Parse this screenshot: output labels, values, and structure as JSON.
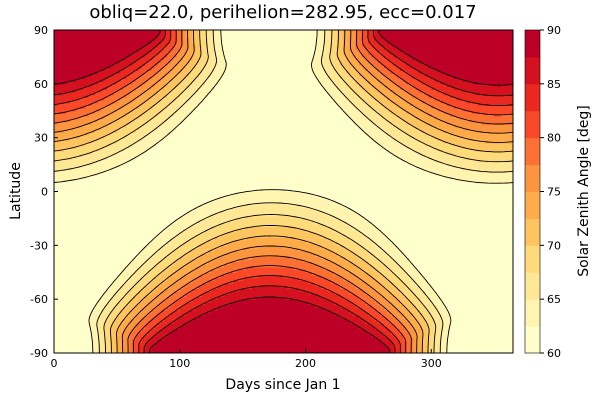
{
  "chart_data": {
    "type": "heatmap",
    "subtype": "filled-contour",
    "title": "obliq=22.0, perihelion=282.95, ecc=0.017",
    "xlabel": "Days since Jan 1",
    "ylabel": "Latitude",
    "colorbar_label": "Solar Zenith Angle [deg]",
    "xlim": [
      0,
      365
    ],
    "ylim": [
      -90,
      90
    ],
    "x_ticks": [
      0,
      100,
      200,
      300
    ],
    "y_ticks": [
      -90,
      -60,
      -30,
      0,
      30,
      60,
      90
    ],
    "colorbar_range": [
      60,
      90
    ],
    "colorbar_ticks": [
      60,
      65,
      70,
      75,
      80,
      85,
      90
    ],
    "contour_levels": [
      60,
      62.5,
      65,
      67.5,
      70,
      72.5,
      75,
      77.5,
      80,
      82.5,
      85,
      87.5,
      90
    ],
    "colormap": [
      "#ffffcc",
      "#ffeda0",
      "#fed976",
      "#feb24c",
      "#fd8d3c",
      "#fc4e2a",
      "#e31a1c",
      "#bd0026"
    ],
    "line_color": "#000000",
    "parameters": {
      "obliquity_deg": 22.0,
      "perihelion_deg": 282.95,
      "eccentricity": 0.017
    },
    "grid": false
  }
}
